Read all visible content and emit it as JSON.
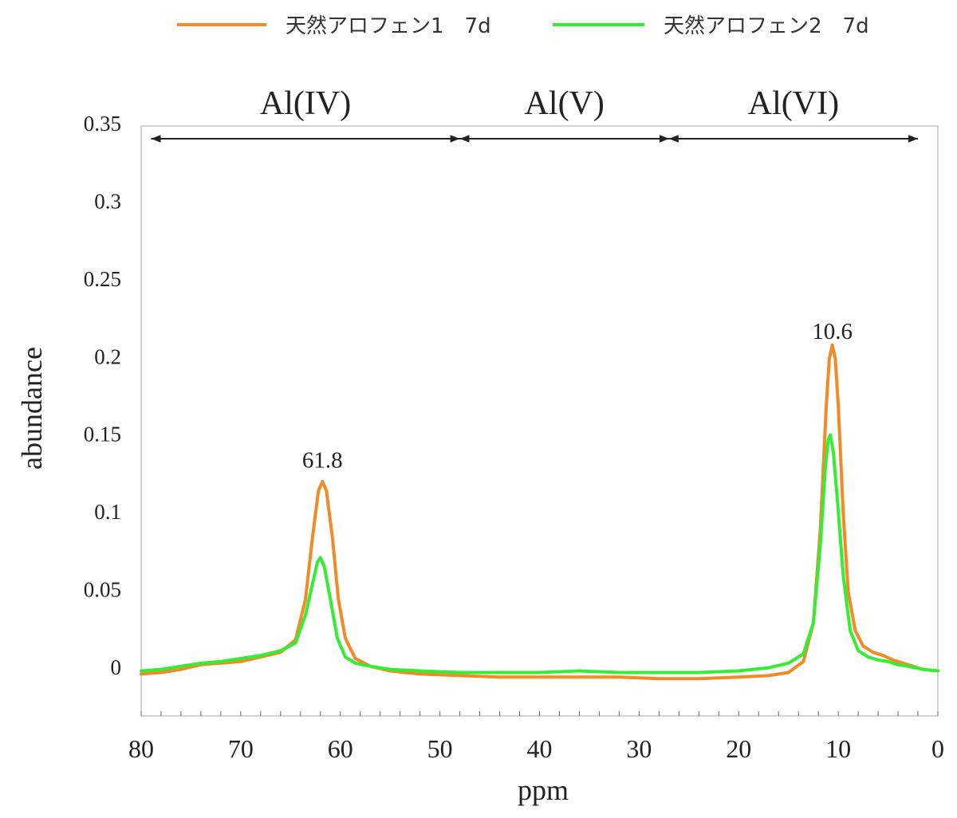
{
  "legend": [
    {
      "label": "天然アロフェン1　7d",
      "color": "#F28A26"
    },
    {
      "label": "天然アロフェン2　7d",
      "color": "#33EE33"
    }
  ],
  "chart_data": {
    "type": "line",
    "xlabel": "ppm",
    "ylabel": "abundance",
    "xlim": [
      80,
      0
    ],
    "x_reversed": true,
    "ylim": [
      -0.03,
      0.35
    ],
    "x_ticks": [
      "80",
      "70",
      "60",
      "50",
      "40",
      "30",
      "20",
      "10",
      "0"
    ],
    "y_ticks": [
      "0.35",
      "0.3",
      "0.25",
      "0.2",
      "0.15",
      "0.1",
      "0.05",
      "0"
    ],
    "regions": [
      {
        "label": "Al(IV)",
        "from": 79,
        "to": 48
      },
      {
        "label": "Al(V)",
        "from": 48,
        "to": 27
      },
      {
        "label": "Al(VI)",
        "from": 27,
        "to": 2
      }
    ],
    "annotations": [
      {
        "text": "61.8",
        "x": 61.8,
        "y": 0.13
      },
      {
        "text": "10.6",
        "x": 10.6,
        "y": 0.213
      }
    ],
    "series": [
      {
        "name": "天然アロフェン1　7d",
        "color": "#F28A26",
        "points": [
          [
            80,
            -0.003
          ],
          [
            78,
            -0.002
          ],
          [
            76,
            0.0
          ],
          [
            74,
            0.003
          ],
          [
            72,
            0.004
          ],
          [
            70,
            0.005
          ],
          [
            68,
            0.008
          ],
          [
            66,
            0.011
          ],
          [
            64.5,
            0.019
          ],
          [
            63.5,
            0.045
          ],
          [
            62.8,
            0.085
          ],
          [
            62.2,
            0.115
          ],
          [
            61.8,
            0.121
          ],
          [
            61.4,
            0.115
          ],
          [
            60.8,
            0.085
          ],
          [
            60.2,
            0.045
          ],
          [
            59.5,
            0.02
          ],
          [
            58.5,
            0.007
          ],
          [
            57,
            0.002
          ],
          [
            55,
            -0.001
          ],
          [
            52,
            -0.003
          ],
          [
            48,
            -0.004
          ],
          [
            44,
            -0.005
          ],
          [
            40,
            -0.005
          ],
          [
            36,
            -0.005
          ],
          [
            32,
            -0.005
          ],
          [
            28,
            -0.006
          ],
          [
            24,
            -0.006
          ],
          [
            20,
            -0.005
          ],
          [
            17,
            -0.004
          ],
          [
            15,
            -0.002
          ],
          [
            13.5,
            0.005
          ],
          [
            12.5,
            0.03
          ],
          [
            11.8,
            0.09
          ],
          [
            11.2,
            0.17
          ],
          [
            10.9,
            0.2
          ],
          [
            10.6,
            0.209
          ],
          [
            10.3,
            0.2
          ],
          [
            10.0,
            0.17
          ],
          [
            9.5,
            0.1
          ],
          [
            9.0,
            0.05
          ],
          [
            8.3,
            0.025
          ],
          [
            7.5,
            0.015
          ],
          [
            6.5,
            0.011
          ],
          [
            5.5,
            0.009
          ],
          [
            4.5,
            0.006
          ],
          [
            3,
            0.003
          ],
          [
            1.5,
            0.0
          ],
          [
            0,
            -0.001
          ]
        ]
      },
      {
        "name": "天然アロフェン2　7d",
        "color": "#33EE33",
        "points": [
          [
            80,
            -0.001
          ],
          [
            78,
            0.0
          ],
          [
            76,
            0.002
          ],
          [
            74,
            0.004
          ],
          [
            72,
            0.005
          ],
          [
            70,
            0.007
          ],
          [
            68,
            0.009
          ],
          [
            66,
            0.012
          ],
          [
            64.5,
            0.017
          ],
          [
            63.5,
            0.035
          ],
          [
            62.8,
            0.055
          ],
          [
            62.3,
            0.069
          ],
          [
            62.0,
            0.072
          ],
          [
            61.6,
            0.066
          ],
          [
            61.0,
            0.045
          ],
          [
            60.3,
            0.02
          ],
          [
            59.5,
            0.008
          ],
          [
            58.5,
            0.004
          ],
          [
            57,
            0.002
          ],
          [
            55,
            0.0
          ],
          [
            52,
            -0.001
          ],
          [
            48,
            -0.002
          ],
          [
            44,
            -0.002
          ],
          [
            40,
            -0.002
          ],
          [
            36,
            -0.001
          ],
          [
            32,
            -0.002
          ],
          [
            28,
            -0.002
          ],
          [
            24,
            -0.002
          ],
          [
            20,
            -0.001
          ],
          [
            17,
            0.001
          ],
          [
            15,
            0.004
          ],
          [
            13.5,
            0.01
          ],
          [
            12.5,
            0.03
          ],
          [
            11.8,
            0.08
          ],
          [
            11.3,
            0.13
          ],
          [
            11.0,
            0.148
          ],
          [
            10.8,
            0.151
          ],
          [
            10.5,
            0.14
          ],
          [
            10.1,
            0.11
          ],
          [
            9.5,
            0.06
          ],
          [
            8.8,
            0.025
          ],
          [
            8.0,
            0.012
          ],
          [
            7,
            0.008
          ],
          [
            6,
            0.006
          ],
          [
            5,
            0.005
          ],
          [
            4,
            0.003
          ],
          [
            3,
            0.002
          ],
          [
            1.5,
            0.0
          ],
          [
            0,
            -0.001
          ]
        ]
      }
    ]
  }
}
